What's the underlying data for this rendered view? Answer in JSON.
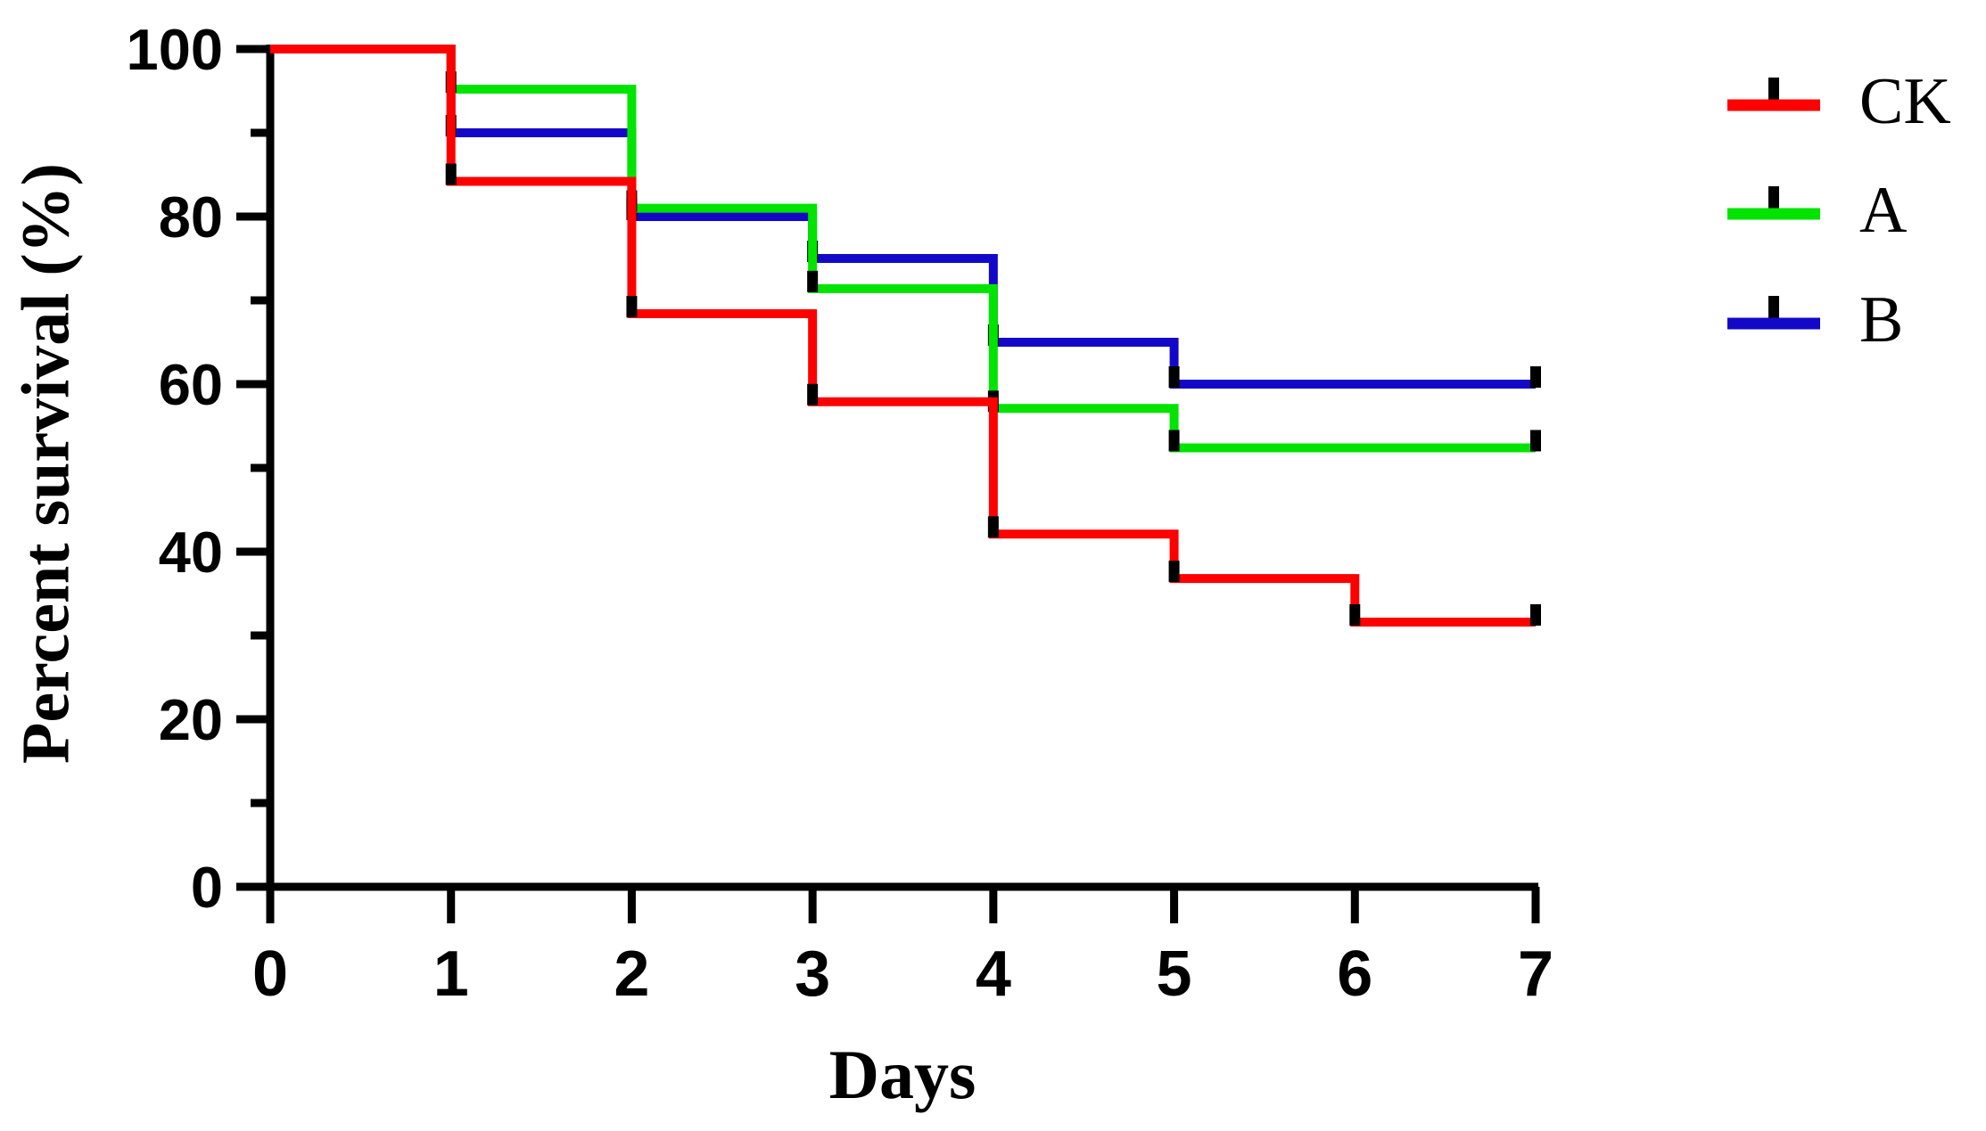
{
  "chart_data": {
    "type": "line",
    "subtype": "kaplan-meier-step-survival",
    "title": "",
    "xlabel": "Days",
    "ylabel": "Percent survival (%)",
    "xlim": [
      0,
      7
    ],
    "ylim": [
      0,
      100
    ],
    "grid": false,
    "legend_position": "right-outside",
    "x_ticks": [
      0,
      1,
      2,
      3,
      4,
      5,
      6,
      7
    ],
    "y_major_ticks": [
      0,
      20,
      40,
      60,
      80,
      100
    ],
    "y_minor_ticks": [
      10,
      30,
      50,
      70,
      90
    ],
    "x": [
      0,
      1,
      2,
      3,
      4,
      5,
      6,
      7
    ],
    "series": [
      {
        "name": "CK",
        "color": "#FF0000",
        "values": [
          100,
          84.2,
          68.4,
          57.9,
          42.1,
          36.8,
          31.6,
          31.6
        ],
        "censor_tick_at_end": true
      },
      {
        "name": "A",
        "color": "#00E400",
        "values": [
          100,
          95.2,
          81.0,
          71.4,
          57.1,
          52.4,
          52.4,
          52.4
        ],
        "censor_tick_at_end": true
      },
      {
        "name": "B",
        "color": "#1408C8",
        "values": [
          100,
          90,
          80,
          75,
          65,
          60,
          60,
          60
        ],
        "censor_tick_at_end": true
      }
    ],
    "axis_color": "#000000",
    "censor_tick_color": "#000000"
  }
}
